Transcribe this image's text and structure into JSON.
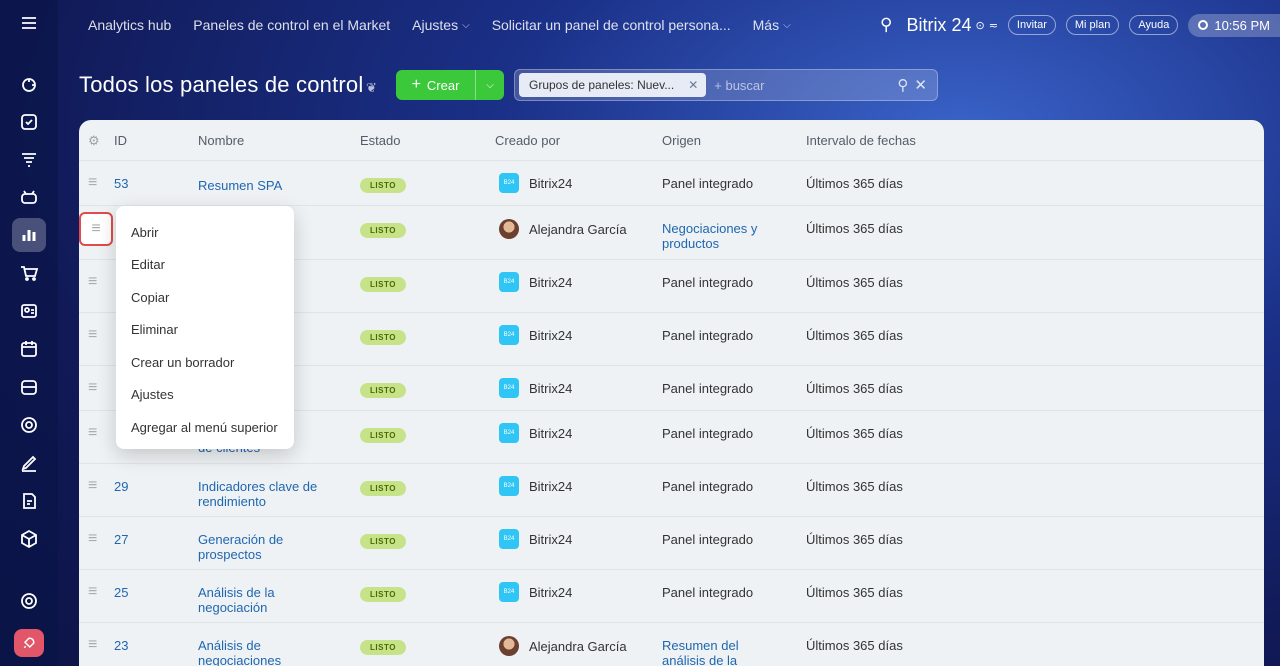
{
  "topbar": {
    "nav": [
      {
        "label": "Analytics hub",
        "chevron": false
      },
      {
        "label": "Paneles de control en el Market",
        "chevron": false
      },
      {
        "label": "Ajustes",
        "chevron": true
      },
      {
        "label": "Solicitar un panel de control persona...",
        "chevron": false
      },
      {
        "label": "Más",
        "chevron": true
      }
    ],
    "logo": "Bitrix 24",
    "invite": "Invitar",
    "plan": "Mi plan",
    "help": "Ayuda",
    "time": "10:56 PM"
  },
  "page": {
    "title": "Todos los paneles de control",
    "create_label": "Crear",
    "filter_chip": "Grupos de paneles: Nuev...",
    "search_placeholder": "+ buscar"
  },
  "table": {
    "headers": {
      "id": "ID",
      "name": "Nombre",
      "status": "Estado",
      "creator": "Creado por",
      "origin": "Origen",
      "range": "Intervalo de fechas"
    },
    "rows": [
      {
        "id": "53",
        "name": "Resumen SPA",
        "status": "LISTO",
        "creator": "Bitrix24",
        "creator_type": "logo",
        "origin": "Panel integrado",
        "origin_link": false,
        "range": "Últimos 365 días"
      },
      {
        "id": "",
        "name": "",
        "status": "LISTO",
        "creator": "Alejandra García",
        "creator_type": "avatar",
        "origin": "Negociaciones y productos",
        "origin_link": true,
        "range": "Últimos 365 días"
      },
      {
        "id": "",
        "name": "",
        "status": "LISTO",
        "creator": "Bitrix24",
        "creator_type": "logo",
        "origin": "Panel integrado",
        "origin_link": false,
        "range": "Últimos 365 días"
      },
      {
        "id": "",
        "name": "",
        "status": "LISTO",
        "creator": "Bitrix24",
        "creator_type": "logo",
        "origin": "Panel integrado",
        "origin_link": false,
        "range": "Últimos 365 días"
      },
      {
        "id": "",
        "name": "",
        "status": "LISTO",
        "creator": "Bitrix24",
        "creator_type": "logo",
        "origin": "Panel integrado",
        "origin_link": false,
        "range": "Últimos 365 días"
      },
      {
        "id": "",
        "name": "de clientes",
        "status": "LISTO",
        "creator": "Bitrix24",
        "creator_type": "logo",
        "origin": "Panel integrado",
        "origin_link": false,
        "range": "Últimos 365 días"
      },
      {
        "id": "29",
        "name": "Indicadores clave de rendimiento",
        "status": "LISTO",
        "creator": "Bitrix24",
        "creator_type": "logo",
        "origin": "Panel integrado",
        "origin_link": false,
        "range": "Últimos 365 días"
      },
      {
        "id": "27",
        "name": "Generación de prospectos",
        "status": "LISTO",
        "creator": "Bitrix24",
        "creator_type": "logo",
        "origin": "Panel integrado",
        "origin_link": false,
        "range": "Últimos 365 días"
      },
      {
        "id": "25",
        "name": "Análisis de la negociación",
        "status": "LISTO",
        "creator": "Bitrix24",
        "creator_type": "logo",
        "origin": "Panel integrado",
        "origin_link": false,
        "range": "Últimos 365 días"
      },
      {
        "id": "23",
        "name": "Análisis de negociaciones",
        "status": "LISTO",
        "creator": "Alejandra García",
        "creator_type": "avatar",
        "origin": "Resumen del análisis de la",
        "origin_link": true,
        "range": "Últimos 365 días"
      }
    ]
  },
  "context_menu": {
    "items": [
      "Abrir",
      "Editar",
      "Copiar",
      "Eliminar",
      "Crear un borrador",
      "Ajustes",
      "Agregar al menú superior"
    ]
  },
  "colors": {
    "accent_green": "#3bc83b",
    "link_blue": "#2067b0",
    "badge_bg": "#c7e38a",
    "highlight_red": "#e04b4b"
  }
}
